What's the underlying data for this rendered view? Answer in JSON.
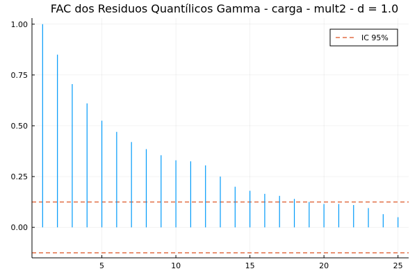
{
  "chart_data": {
    "type": "bar",
    "title": "FAC dos Residuos Quantílicos Gamma - carga - mult2 - d = 1.0",
    "xlabel": "",
    "ylabel": "",
    "xlim": [
      0.28,
      25.72
    ],
    "ylim": [
      -0.15,
      1.03
    ],
    "xticks": [
      5,
      10,
      15,
      20,
      25
    ],
    "yticks": [
      0.0,
      0.25,
      0.5,
      0.75,
      1.0
    ],
    "xtick_labels": [
      "5",
      "10",
      "15",
      "20",
      "25"
    ],
    "ytick_labels": [
      "0.00",
      "0.25",
      "0.50",
      "0.75",
      "1.00"
    ],
    "grid": true,
    "legend_position": "top-right",
    "series": [
      {
        "style": "stem",
        "color": "#009af9",
        "x": [
          1,
          2,
          3,
          4,
          5,
          6,
          7,
          8,
          9,
          10,
          11,
          12,
          13,
          14,
          15,
          16,
          17,
          18,
          19,
          20,
          21,
          22,
          23,
          24,
          25
        ],
        "values": [
          1.0,
          0.85,
          0.705,
          0.61,
          0.525,
          0.47,
          0.42,
          0.385,
          0.355,
          0.33,
          0.325,
          0.305,
          0.25,
          0.2,
          0.18,
          0.165,
          0.155,
          0.14,
          0.125,
          0.115,
          0.115,
          0.11,
          0.095,
          0.065,
          0.05
        ]
      },
      {
        "name": "IC 95%",
        "style": "dashed-hline",
        "color": "#e26f46",
        "values": [
          0.125
        ]
      },
      {
        "style": "dashed-hline",
        "color": "#e26f46",
        "values": [
          -0.125
        ]
      }
    ]
  }
}
